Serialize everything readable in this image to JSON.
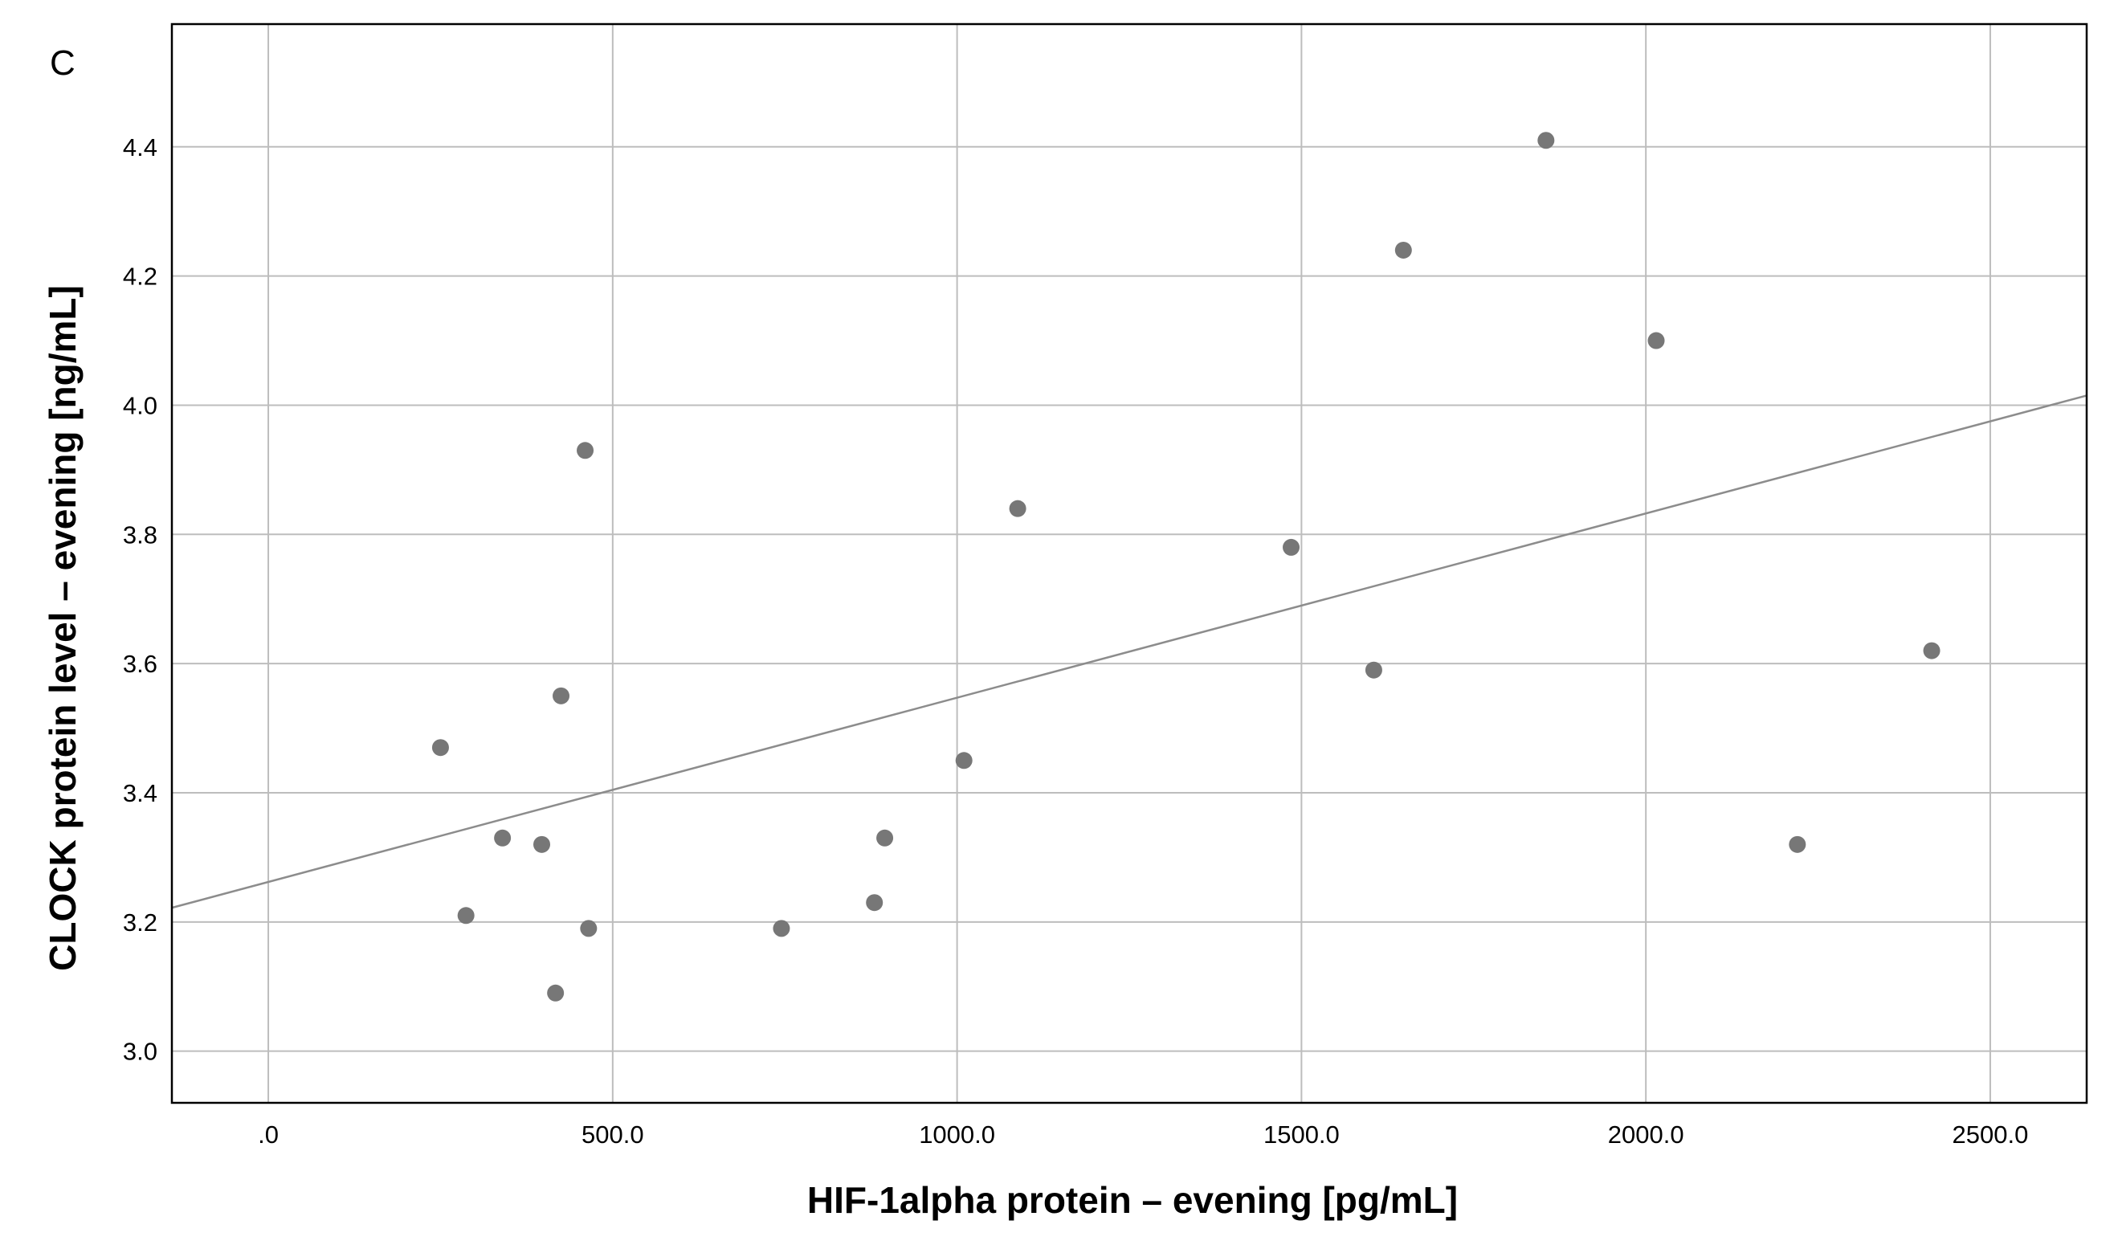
{
  "chart_data": {
    "type": "scatter",
    "panel_label": "C",
    "title": "",
    "xlabel": "HIF-1alpha protein – evening [pg/mL]",
    "ylabel": "CLOCK protein level – evening [ng/mL]",
    "xlim": [
      -140,
      2640
    ],
    "ylim": [
      2.92,
      4.59
    ],
    "x_ticks": [
      0,
      500,
      1000,
      1500,
      2000,
      2500
    ],
    "x_tick_labels": [
      ".0",
      "500.0",
      "1000.0",
      "1500.0",
      "2000.0",
      "2500.0"
    ],
    "y_ticks": [
      3.0,
      3.2,
      3.4,
      3.6,
      3.8,
      4.0,
      4.2,
      4.4
    ],
    "y_tick_labels": [
      "3.0",
      "3.2",
      "3.4",
      "3.6",
      "3.8",
      "4.0",
      "4.2",
      "4.4"
    ],
    "grid": true,
    "legend": "none",
    "points": [
      {
        "x": 250,
        "y": 3.47
      },
      {
        "x": 287,
        "y": 3.21
      },
      {
        "x": 340,
        "y": 3.33
      },
      {
        "x": 397,
        "y": 3.32
      },
      {
        "x": 417,
        "y": 3.09
      },
      {
        "x": 425,
        "y": 3.55
      },
      {
        "x": 460,
        "y": 3.93
      },
      {
        "x": 465,
        "y": 3.19
      },
      {
        "x": 745,
        "y": 3.19
      },
      {
        "x": 880,
        "y": 3.23
      },
      {
        "x": 895,
        "y": 3.33
      },
      {
        "x": 1010,
        "y": 3.45
      },
      {
        "x": 1088,
        "y": 3.84
      },
      {
        "x": 1485,
        "y": 3.78
      },
      {
        "x": 1605,
        "y": 3.59
      },
      {
        "x": 1648,
        "y": 4.24
      },
      {
        "x": 1855,
        "y": 4.41
      },
      {
        "x": 2015,
        "y": 4.1
      },
      {
        "x": 2220,
        "y": 3.32
      },
      {
        "x": 2415,
        "y": 3.62
      }
    ],
    "fit_line": {
      "x": [
        -140,
        2640
      ],
      "y": [
        3.222,
        4.015
      ]
    },
    "colors": {
      "points": "#777777",
      "grid": "#bdbdbd",
      "fit_line": "#8c8c8c",
      "frame": "#000000"
    }
  }
}
